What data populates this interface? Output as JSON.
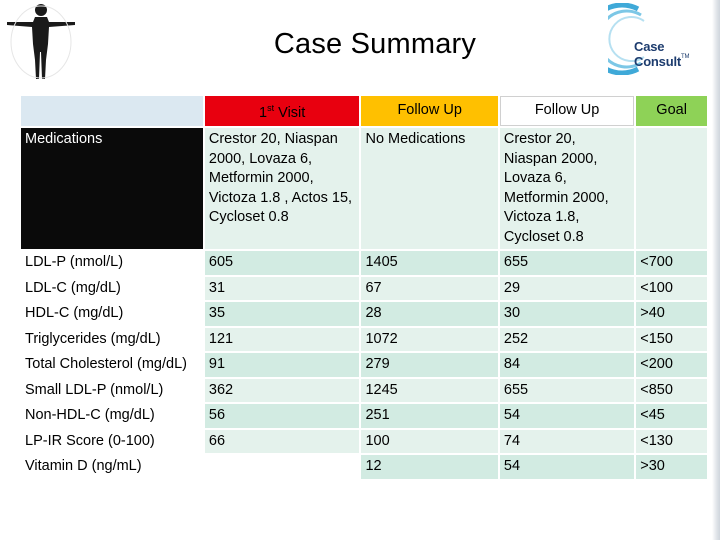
{
  "header": {
    "title": "Case Summary",
    "logo_text": "Case Consult",
    "logo_tm": "TM"
  },
  "table": {
    "columns": [
      "",
      "1st Visit",
      "Follow Up",
      "Follow Up",
      "Goal"
    ],
    "first_visit_label": "1",
    "first_visit_sup": "st",
    "first_visit_rest": " Visit",
    "rows": [
      {
        "label": "Medications",
        "v1": "Crestor 20, Niaspan 2000, Lovaza 6, Metformin 2000, Victoza 1.8 , Actos 15, Cycloset 0.8",
        "v2": "No Medications",
        "v3": "Crestor 20, Niaspan 2000, Lovaza 6, Metformin 2000, Victoza 1.8, Cycloset 0.8",
        "goal": ""
      },
      {
        "label": "LDL-P (nmol/L)",
        "v1": "605",
        "v2": "1405",
        "v3": "655",
        "goal": "<700"
      },
      {
        "label": "LDL-C (mg/dL)",
        "v1": "31",
        "v2": "67",
        "v3": "29",
        "goal": "<100"
      },
      {
        "label": "HDL-C (mg/dL)",
        "v1": "35",
        "v2": "28",
        "v3": "30",
        "goal": ">40"
      },
      {
        "label": "Triglycerides (mg/dL)",
        "v1": "121",
        "v2": "1072",
        "v3": "252",
        "goal": "<150"
      },
      {
        "label": "Total Cholesterol (mg/dL)",
        "v1": "91",
        "v2": "279",
        "v3": "84",
        "goal": "<200"
      },
      {
        "label": "Small LDL-P (nmol/L)",
        "v1": "362",
        "v2": "1245",
        "v3": "655",
        "goal": "<850"
      },
      {
        "label": "Non-HDL-C (mg/dL)",
        "v1": "56",
        "v2": "251",
        "v3": "54",
        "goal": "<45"
      },
      {
        "label": "LP-IR Score (0-100)",
        "v1": "66",
        "v2": "100",
        "v3": "74",
        "goal": "<130"
      },
      {
        "label": "Vitamin D (ng/mL)",
        "v1": "",
        "v2": "12",
        "v3": "54",
        "goal": ">30"
      }
    ]
  },
  "colors": {
    "first_visit": "#e8000f",
    "follow_up": "#ffc000",
    "goal": "#8ed257",
    "cell_light": "#e4f2ec",
    "cell_dark": "#d2ebe2"
  }
}
